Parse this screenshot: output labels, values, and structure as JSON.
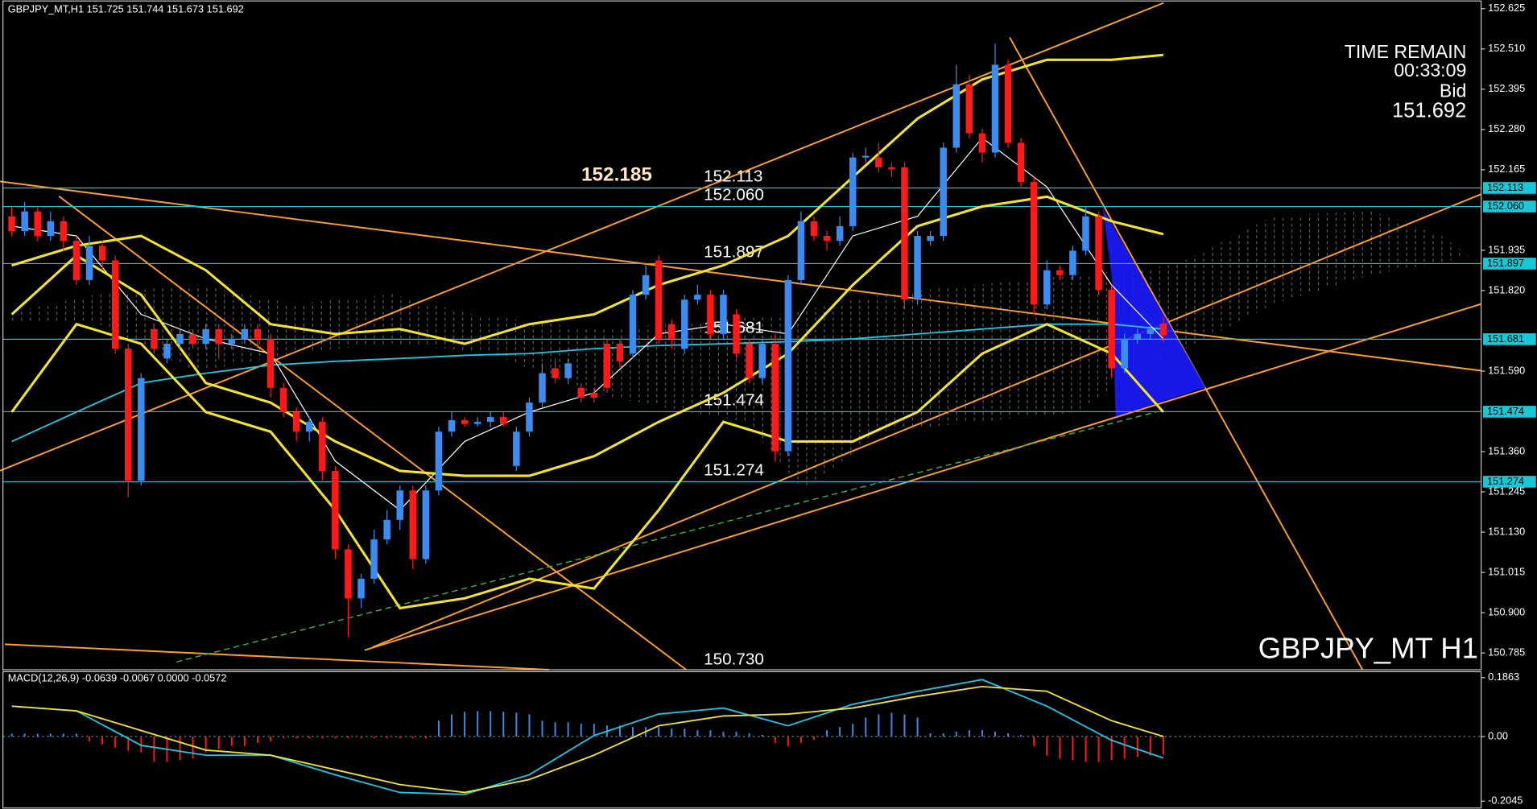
{
  "chart_data": [
    {
      "type": "candlestick",
      "title": "GBPJPY_MT,H1  151.725 151.744 151.673 151.692",
      "up_color": "#3a8cf0",
      "down_color": "#ff1a1a",
      "open": [
        152.032,
        151.99,
        152.046,
        151.976,
        152.018,
        151.962,
        151.85,
        151.948,
        151.906,
        151.654,
        151.277,
        151.71,
        151.626,
        151.668,
        151.696,
        151.668,
        151.71,
        151.668,
        151.682,
        151.71,
        151.682,
        151.542,
        151.473,
        151.417,
        151.445,
        151.305,
        151.081,
        150.941,
        150.997,
        151.109,
        151.165,
        151.249,
        151.053,
        151.249,
        151.417,
        151.45,
        151.439,
        151.445,
        151.459,
        151.319,
        151.417,
        151.5,
        151.598,
        151.57,
        151.542,
        151.528,
        151.668,
        151.668,
        151.64,
        151.808,
        151.906,
        151.724,
        151.654,
        151.794,
        151.808,
        151.696,
        151.752,
        151.668,
        151.57,
        151.668,
        151.361,
        151.85,
        152.018,
        151.976,
        151.962,
        152.004,
        152.2,
        152.2,
        152.172,
        152.172,
        151.794,
        151.962,
        151.976,
        152.228,
        152.409,
        152.269,
        152.214,
        152.465,
        152.242,
        152.13,
        151.78,
        151.878,
        151.864,
        151.934,
        152.032,
        151.822,
        151.598,
        151.682,
        151.696,
        151.725
      ],
      "high": [
        152.06,
        152.074,
        152.06,
        152.046,
        152.032,
        151.976,
        151.976,
        151.962,
        151.92,
        151.668,
        151.584,
        151.724,
        151.682,
        151.71,
        151.71,
        151.724,
        151.724,
        151.696,
        151.724,
        151.724,
        151.696,
        151.556,
        151.487,
        151.459,
        151.459,
        151.319,
        151.095,
        151.011,
        151.137,
        151.193,
        151.263,
        151.263,
        151.263,
        151.431,
        151.473,
        151.459,
        151.459,
        151.473,
        151.473,
        151.431,
        151.514,
        151.612,
        151.626,
        151.626,
        151.556,
        151.542,
        151.682,
        151.682,
        151.822,
        151.892,
        151.92,
        151.738,
        151.808,
        151.836,
        151.822,
        151.822,
        151.766,
        151.682,
        151.682,
        151.696,
        151.864,
        152.046,
        152.032,
        151.99,
        152.032,
        152.214,
        152.228,
        152.242,
        152.186,
        152.186,
        151.99,
        151.99,
        152.242,
        152.465,
        152.437,
        152.283,
        152.525,
        152.479,
        152.256,
        152.144,
        151.906,
        151.892,
        151.948,
        152.06,
        152.046,
        151.836,
        151.696,
        151.71,
        151.724,
        151.744
      ],
      "low": [
        151.976,
        151.976,
        151.962,
        151.962,
        151.934,
        151.836,
        151.836,
        151.878,
        151.64,
        151.23,
        151.263,
        151.64,
        151.612,
        151.654,
        151.654,
        151.654,
        151.626,
        151.654,
        151.668,
        151.654,
        151.514,
        151.459,
        151.389,
        151.389,
        151.277,
        151.053,
        150.83,
        150.913,
        150.983,
        151.095,
        151.137,
        151.025,
        151.039,
        151.235,
        151.403,
        151.431,
        151.431,
        151.431,
        151.431,
        151.305,
        151.403,
        151.487,
        151.556,
        151.556,
        151.5,
        151.5,
        151.528,
        151.6,
        151.626,
        151.794,
        151.668,
        151.654,
        151.64,
        151.78,
        151.682,
        151.682,
        151.626,
        151.556,
        151.556,
        151.333,
        151.347,
        151.836,
        151.962,
        151.934,
        151.948,
        151.99,
        152.186,
        152.158,
        152.144,
        151.766,
        151.78,
        151.948,
        151.962,
        152.214,
        152.255,
        152.186,
        152.2,
        152.228,
        152.116,
        151.752,
        151.766,
        151.85,
        151.85,
        151.92,
        151.808,
        151.57,
        151.584,
        151.668,
        151.682,
        151.673
      ],
      "close": [
        151.99,
        152.046,
        151.976,
        152.018,
        151.962,
        151.85,
        151.948,
        151.906,
        151.654,
        151.277,
        151.57,
        151.654,
        151.668,
        151.696,
        151.668,
        151.71,
        151.668,
        151.682,
        151.71,
        151.682,
        151.542,
        151.473,
        151.417,
        151.445,
        151.305,
        151.081,
        150.941,
        150.997,
        151.109,
        151.165,
        151.249,
        151.053,
        151.249,
        151.417,
        151.45,
        151.439,
        151.445,
        151.459,
        151.439,
        151.417,
        151.5,
        151.584,
        151.57,
        151.612,
        151.514,
        151.514,
        151.542,
        151.618,
        151.808,
        151.864,
        151.682,
        151.682,
        151.794,
        151.808,
        151.696,
        151.808,
        151.64,
        151.57,
        151.668,
        151.361,
        151.85,
        152.018,
        151.976,
        151.962,
        152.004,
        152.2,
        152.205,
        152.172,
        152.166,
        151.794,
        151.976,
        151.976,
        152.228,
        152.409,
        152.269,
        152.214,
        152.465,
        152.242,
        152.13,
        151.78,
        151.878,
        151.864,
        151.934,
        152.032,
        151.822,
        151.598,
        151.682,
        151.696,
        151.71,
        151.692
      ],
      "series": [
        {
          "color": "#19c8e6",
          "width": 1.5,
          "x": [
            0,
            5,
            10,
            15,
            20,
            25,
            30,
            35,
            40,
            45,
            50,
            55,
            60,
            65,
            70,
            75,
            80,
            85,
            89
          ],
          "values": [
            151.389,
            151.473,
            151.556,
            151.584,
            151.607,
            151.618,
            151.626,
            151.635,
            151.64,
            151.654,
            151.663,
            151.668,
            151.674,
            151.682,
            151.696,
            151.71,
            151.724,
            151.724,
            151.71
          ]
        },
        {
          "color": "#ffffff",
          "width": 1,
          "x": [
            0,
            5,
            10,
            15,
            20,
            25,
            30,
            35,
            40,
            45,
            50,
            55,
            60,
            65,
            70,
            75,
            80,
            85,
            89
          ],
          "values": [
            152.004,
            151.976,
            151.752,
            151.682,
            151.64,
            151.333,
            151.193,
            151.389,
            151.473,
            151.528,
            151.696,
            151.724,
            151.696,
            151.976,
            152.032,
            152.256,
            152.116,
            151.836,
            151.682
          ]
        },
        {
          "color": "#f5e52a",
          "width": 2.5,
          "x": [
            0,
            5,
            10,
            15,
            20,
            25,
            30,
            35,
            40,
            45,
            50,
            55,
            60,
            65,
            70,
            75,
            80,
            85,
            89
          ],
          "values": [
            151.752,
            151.92,
            151.808,
            151.556,
            151.5,
            151.389,
            151.305,
            151.291,
            151.291,
            151.347,
            151.445,
            151.528,
            151.64,
            151.836,
            152.004,
            152.06,
            152.088,
            152.018,
            151.981
          ]
        },
        {
          "color": "#f5e52a",
          "width": 2.5,
          "x": [
            0,
            5,
            10,
            15,
            20,
            25,
            30,
            35,
            40,
            45,
            50,
            55,
            60,
            65,
            70,
            75,
            80,
            85,
            89
          ],
          "values": [
            151.892,
            151.948,
            151.976,
            151.878,
            151.724,
            151.696,
            151.71,
            151.668,
            151.724,
            151.752,
            151.836,
            151.892,
            151.976,
            152.144,
            152.311,
            152.423,
            152.479,
            152.479,
            152.493
          ]
        },
        {
          "color": "#f5e52a",
          "width": 2.5,
          "x": [
            0,
            5,
            10,
            15,
            20,
            25,
            30,
            35,
            40,
            45,
            50,
            55,
            60,
            65,
            70,
            75,
            80,
            85,
            89
          ],
          "values": [
            151.473,
            151.724,
            151.668,
            151.473,
            151.417,
            151.193,
            150.913,
            150.941,
            150.997,
            150.969,
            151.193,
            151.445,
            151.389,
            151.389,
            151.473,
            151.64,
            151.724,
            151.64,
            151.473
          ]
        }
      ],
      "levels": [
        {
          "value": 152.113,
          "label": "152.113"
        },
        {
          "value": 152.06,
          "label": "152.060"
        },
        {
          "value": 151.897,
          "label": "151.897"
        },
        {
          "value": 151.681,
          "label": "151.681"
        },
        {
          "value": 151.474,
          "label": "151.474"
        },
        {
          "value": 151.274,
          "label": "151.274"
        }
      ],
      "level_color": "#19c8d6",
      "annotations": [
        "152.185",
        "150.730"
      ],
      "info": [
        "TIME REMAIN",
        "00:33:09",
        "Bid",
        "151.692"
      ],
      "watermark": "GBPJPY_MT H1",
      "ylim": [
        150.737,
        152.647
      ],
      "yticks": [
        152.625,
        {
          "value": 152.51,
          "label": "152.510"
        },
        152.395,
        {
          "value": 152.28,
          "label": "152.280"
        },
        152.165,
        151.935,
        {
          "value": 151.82,
          "label": "151.820"
        },
        {
          "value": 151.59,
          "label": "151.590"
        },
        {
          "value": 151.36,
          "label": "151.360"
        },
        151.245,
        {
          "value": 151.13,
          "label": "151.130"
        },
        151.015,
        {
          "value": 150.9,
          "label": "150.900"
        },
        150.785
      ]
    },
    {
      "type": "macd",
      "title": "MACD(12,26,9) -0.0639 -0.0067 0.0000 -0.0572",
      "up_color": "#3a8cf0",
      "down_color": "#ff1a1a",
      "histogram": [
        0.009,
        0.009,
        0.009,
        0.009,
        0.009,
        0.009,
        -0.015,
        -0.025,
        -0.035,
        -0.045,
        -0.05,
        -0.08,
        -0.08,
        -0.075,
        -0.07,
        -0.05,
        -0.04,
        -0.03,
        -0.03,
        -0.02,
        -0.015,
        -0.005,
        -0.005,
        -0.005,
        -0.005,
        -0.005,
        -0.005,
        -0.005,
        -0.005,
        -0.005,
        -0.005,
        -0.005,
        -0.005,
        0.05,
        0.07,
        0.078,
        0.08,
        0.08,
        0.078,
        0.075,
        0.07,
        0.05,
        0.045,
        0.045,
        0.04,
        0.04,
        0.035,
        0.035,
        0.03,
        0.03,
        0.03,
        0.025,
        0.025,
        0.02,
        0.02,
        0.015,
        0.015,
        0.01,
        0.005,
        -0.02,
        -0.03,
        -0.02,
        -0.01,
        0.02,
        0.03,
        0.04,
        0.06,
        0.07,
        0.075,
        0.07,
        0.06,
        0.01,
        0.01,
        0.015,
        0.02,
        0.02,
        0.015,
        0.01,
        0.005,
        -0.03,
        -0.06,
        -0.07,
        -0.075,
        -0.08,
        -0.08,
        -0.075,
        -0.07,
        -0.065,
        -0.06,
        -0.0572
      ],
      "series": [
        {
          "color": "#19c8e6",
          "width": 1.5,
          "x": [
            0,
            5,
            10,
            15,
            20,
            25,
            30,
            35,
            40,
            45,
            50,
            55,
            60,
            65,
            70,
            75,
            80,
            85,
            89
          ],
          "values": [
            0.096,
            0.081,
            -0.028,
            -0.059,
            -0.059,
            -0.121,
            -0.177,
            -0.183,
            -0.121,
            0.003,
            0.071,
            0.09,
            0.034,
            0.102,
            0.143,
            0.18,
            0.096,
            -0.012,
            -0.068
          ]
        },
        {
          "color": "#f5e52a",
          "width": 1.5,
          "x": [
            0,
            5,
            10,
            15,
            20,
            25,
            30,
            35,
            40,
            45,
            50,
            55,
            60,
            65,
            70,
            75,
            80,
            85,
            89
          ],
          "values": [
            0.096,
            0.081,
            0.019,
            -0.043,
            -0.059,
            -0.105,
            -0.152,
            -0.177,
            -0.136,
            -0.059,
            0.034,
            0.065,
            0.071,
            0.09,
            0.127,
            0.158,
            0.143,
            0.05,
            0.0
          ]
        }
      ],
      "ylim": [
        -0.2293,
        0.2049
      ],
      "yticks": [
        0.1863,
        {
          "value": 0,
          "label": "0.00"
        },
        -0.2045
      ]
    }
  ]
}
